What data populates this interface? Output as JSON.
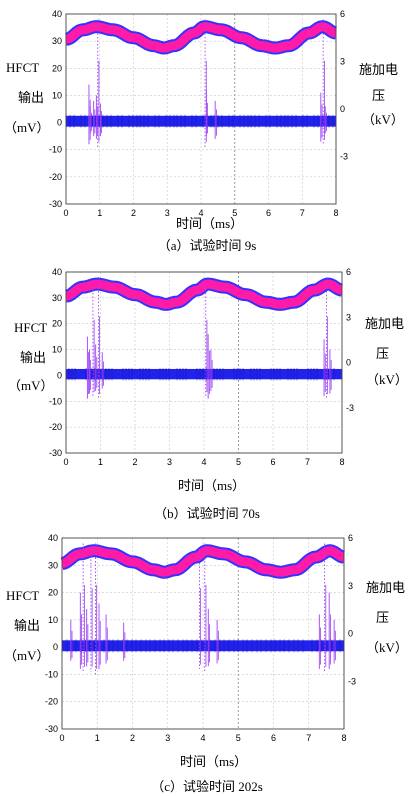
{
  "chart_data": [
    {
      "type": "line",
      "caption": "（a）试验时间 9s",
      "xlabel": "时间（ms）",
      "ylabel_left": [
        "HFCT",
        "输出",
        "（mV）"
      ],
      "ylabel_right": [
        "施加电",
        "压",
        "（kV）"
      ],
      "xlim": [
        0,
        8
      ],
      "ylim_left": [
        -30,
        40
      ],
      "ylim_right": [
        -6,
        6
      ],
      "x_ticks": [
        "0",
        "1",
        "2",
        "3",
        "4",
        "5",
        "6",
        "7",
        "8"
      ],
      "y_left_ticks": [
        "40",
        "30",
        "20",
        "10",
        "0",
        "-10",
        "-20",
        "-30"
      ],
      "y_right_ticks": [
        "6",
        "3",
        "0",
        "-3"
      ],
      "grid": true,
      "series": [
        {
          "axis": "right",
          "color": "#ff1aa8",
          "edge_color": "#3333ff",
          "x": [
            0,
            0.5,
            0.9,
            1.4,
            2.0,
            2.6,
            2.9,
            3.2,
            3.8,
            4.1,
            4.6,
            5.2,
            5.8,
            6.2,
            6.6,
            7.2,
            7.6,
            8.0
          ],
          "values": [
            4.4,
            5.0,
            5.2,
            5.0,
            4.5,
            4.0,
            3.85,
            4.0,
            4.8,
            5.2,
            5.0,
            4.5,
            4.0,
            3.85,
            4.0,
            4.8,
            5.2,
            4.8
          ]
        },
        {
          "axis": "left",
          "color": "#2222ee",
          "band_mV": [
            -1.5,
            2.5
          ],
          "pulses": [
            {
              "x": 0.68,
              "min": -8,
              "max": 14
            },
            {
              "x": 0.72,
              "min": -4,
              "max": 6
            },
            {
              "x": 0.82,
              "min": -5,
              "max": 8
            },
            {
              "x": 0.9,
              "min": -6,
              "max": 10
            },
            {
              "x": 0.94,
              "min": -9,
              "max": 38
            },
            {
              "x": 1.02,
              "min": -5,
              "max": 7
            },
            {
              "x": 4.12,
              "min": -9,
              "max": 38
            },
            {
              "x": 4.16,
              "min": -5,
              "max": 12
            },
            {
              "x": 4.42,
              "min": -6,
              "max": 8
            },
            {
              "x": 7.55,
              "min": -7,
              "max": 11
            },
            {
              "x": 7.62,
              "min": -8,
              "max": 38
            },
            {
              "x": 7.68,
              "min": -4,
              "max": 6
            }
          ]
        }
      ]
    },
    {
      "type": "line",
      "caption": "（b）试验时间 70s",
      "xlabel": "时间（ms）",
      "ylabel_left": [
        "HFCT",
        "输出",
        "（mV）"
      ],
      "ylabel_right": [
        "施加电",
        "压",
        "（kV）"
      ],
      "xlim": [
        0,
        8
      ],
      "ylim_left": [
        -30,
        40
      ],
      "ylim_right": [
        -6,
        6
      ],
      "x_ticks": [
        "0",
        "1",
        "2",
        "3",
        "4",
        "5",
        "6",
        "7",
        "8"
      ],
      "y_left_ticks": [
        "40",
        "30",
        "20",
        "10",
        "0",
        "-10",
        "-20",
        "-30"
      ],
      "y_right_ticks": [
        "6",
        "3",
        "0",
        "-3"
      ],
      "grid": true,
      "series": [
        {
          "axis": "right",
          "color": "#ff1aa8",
          "edge_color": "#3333ff",
          "x": [
            0,
            0.5,
            0.9,
            1.4,
            2.0,
            2.6,
            2.9,
            3.2,
            3.8,
            4.1,
            4.6,
            5.2,
            5.8,
            6.2,
            6.6,
            7.2,
            7.6,
            8.0
          ],
          "values": [
            4.4,
            5.0,
            5.2,
            5.0,
            4.5,
            4.0,
            3.85,
            4.0,
            4.8,
            5.2,
            5.0,
            4.5,
            4.0,
            3.85,
            4.0,
            4.8,
            5.2,
            4.8
          ]
        },
        {
          "axis": "left",
          "color": "#2222ee",
          "band_mV": [
            -1.5,
            2.5
          ],
          "pulses": [
            {
              "x": 0.62,
              "min": -9,
              "max": 15
            },
            {
              "x": 0.68,
              "min": -7,
              "max": 10
            },
            {
              "x": 0.78,
              "min": -8,
              "max": 36
            },
            {
              "x": 0.86,
              "min": -6,
              "max": 12
            },
            {
              "x": 0.94,
              "min": -9,
              "max": 38
            },
            {
              "x": 1.05,
              "min": -5,
              "max": 9
            },
            {
              "x": 4.05,
              "min": -8,
              "max": 36
            },
            {
              "x": 4.12,
              "min": -9,
              "max": 16
            },
            {
              "x": 4.2,
              "min": -6,
              "max": 10
            },
            {
              "x": 7.48,
              "min": -8,
              "max": 14
            },
            {
              "x": 7.55,
              "min": -9,
              "max": 38
            },
            {
              "x": 7.65,
              "min": -7,
              "max": 10
            }
          ]
        }
      ]
    },
    {
      "type": "line",
      "caption": "（c）试验时间 202s",
      "xlabel": "时间（ms）",
      "ylabel_left": [
        "HFCT",
        "输出",
        "（mV）"
      ],
      "ylabel_right": [
        "施加电",
        "压",
        "（kV）"
      ],
      "xlim": [
        0,
        8
      ],
      "ylim_left": [
        -30,
        40
      ],
      "ylim_right": [
        -6,
        6
      ],
      "x_ticks": [
        "0",
        "1",
        "2",
        "3",
        "4",
        "5",
        "6",
        "7",
        "8"
      ],
      "y_left_ticks": [
        "40",
        "30",
        "20",
        "10",
        "0",
        "-10",
        "-20",
        "-30"
      ],
      "y_right_ticks": [
        "6",
        "3",
        "0",
        "-3"
      ],
      "grid": true,
      "series": [
        {
          "axis": "right",
          "color": "#ff1aa8",
          "edge_color": "#3333ff",
          "x": [
            0,
            0.5,
            0.9,
            1.4,
            2.0,
            2.6,
            2.9,
            3.2,
            3.8,
            4.1,
            4.6,
            5.2,
            5.8,
            6.2,
            6.6,
            7.2,
            7.6,
            8.0
          ],
          "values": [
            4.4,
            5.0,
            5.2,
            5.0,
            4.5,
            4.0,
            3.85,
            4.0,
            4.8,
            5.2,
            5.0,
            4.5,
            4.0,
            3.85,
            4.0,
            4.8,
            5.2,
            4.8
          ]
        },
        {
          "axis": "left",
          "color": "#2222ee",
          "band_mV": [
            -1.5,
            2.5
          ],
          "pulses": [
            {
              "x": 0.25,
              "min": -5,
              "max": 10
            },
            {
              "x": 0.52,
              "min": -8,
              "max": 20
            },
            {
              "x": 0.6,
              "min": -9,
              "max": 38
            },
            {
              "x": 0.7,
              "min": -7,
              "max": 14
            },
            {
              "x": 0.82,
              "min": -9,
              "max": 36
            },
            {
              "x": 0.95,
              "min": -10,
              "max": 38
            },
            {
              "x": 1.05,
              "min": -8,
              "max": 16
            },
            {
              "x": 1.25,
              "min": -6,
              "max": 12
            },
            {
              "x": 1.75,
              "min": -5,
              "max": 9
            },
            {
              "x": 3.9,
              "min": -8,
              "max": 36
            },
            {
              "x": 4.05,
              "min": -9,
              "max": 38
            },
            {
              "x": 4.15,
              "min": -7,
              "max": 14
            },
            {
              "x": 4.4,
              "min": -6,
              "max": 10
            },
            {
              "x": 7.3,
              "min": -8,
              "max": 12
            },
            {
              "x": 7.45,
              "min": -9,
              "max": 38
            },
            {
              "x": 7.58,
              "min": -8,
              "max": 20
            },
            {
              "x": 7.72,
              "min": -6,
              "max": 10
            }
          ]
        }
      ]
    }
  ]
}
